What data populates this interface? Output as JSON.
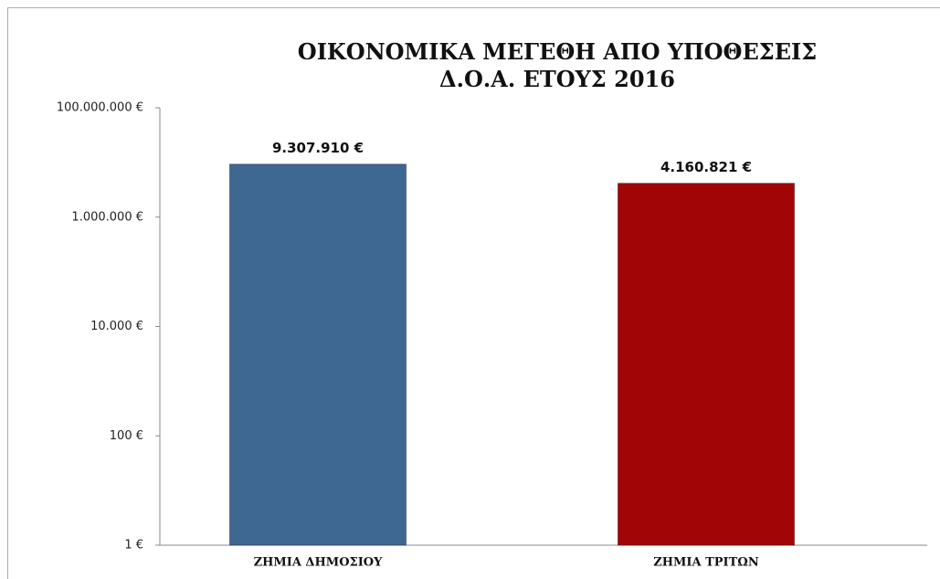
{
  "chart_data": {
    "type": "bar",
    "title": "ΟΙΚΟΝΟΜΙΚΑ ΜΕΓΕΘΗ ΑΠΟ ΥΠΟΘΕΣΕΙΣ Δ.Ο.Α. ΕΤΟΥΣ 2016",
    "categories": [
      "ΖΗΜΙΑ ΔΗΜΟΣΙΟΥ",
      "ΖΗΜΙΑ ΤΡΙΤΩΝ"
    ],
    "values": [
      9307910,
      4160821
    ],
    "value_labels": [
      "9.307.910 €",
      "4.160.821 €"
    ],
    "colors": [
      "#3e6791",
      "#a20505"
    ],
    "log_scale": true,
    "grid": false,
    "ylim": [
      1,
      100000000
    ],
    "yticks": [
      {
        "value": 1,
        "label": "1 €"
      },
      {
        "value": 100,
        "label": "100 €"
      },
      {
        "value": 10000,
        "label": "10.000 €"
      },
      {
        "value": 1000000,
        "label": "1.000.000 €"
      },
      {
        "value": 100000000,
        "label": "100.000.000 €"
      }
    ]
  }
}
